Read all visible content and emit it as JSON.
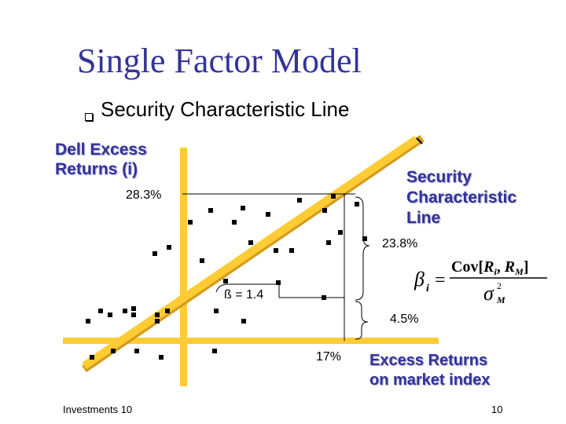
{
  "title": "Single Factor Model",
  "bullet": "Security Characteristic Line",
  "chart_data": {
    "type": "scatter",
    "y_axis_label": [
      "Dell Excess",
      "Returns (i)"
    ],
    "x_axis_label": [
      "Excess Returns",
      "on market index"
    ],
    "line_label": [
      "Security",
      "Characteristic",
      "Line"
    ],
    "annotations": {
      "y_high": "28.3%",
      "y_mid": "23.8%",
      "rise": "4.5%",
      "x_value": "17%",
      "beta": "ß = 1.4"
    },
    "formula": {
      "beta": "β",
      "sub_i": "i",
      "equals": "=",
      "numerator": "Cov[",
      "num_Ri": "R",
      "num_i": "i",
      "comma": ", ",
      "num_RM": "R",
      "num_M": "M",
      "num_close": "]",
      "den_sigma": "σ",
      "den_sup": "2",
      "den_sub": "M"
    }
  },
  "footer": {
    "left": "Investments 10",
    "right": "10"
  }
}
